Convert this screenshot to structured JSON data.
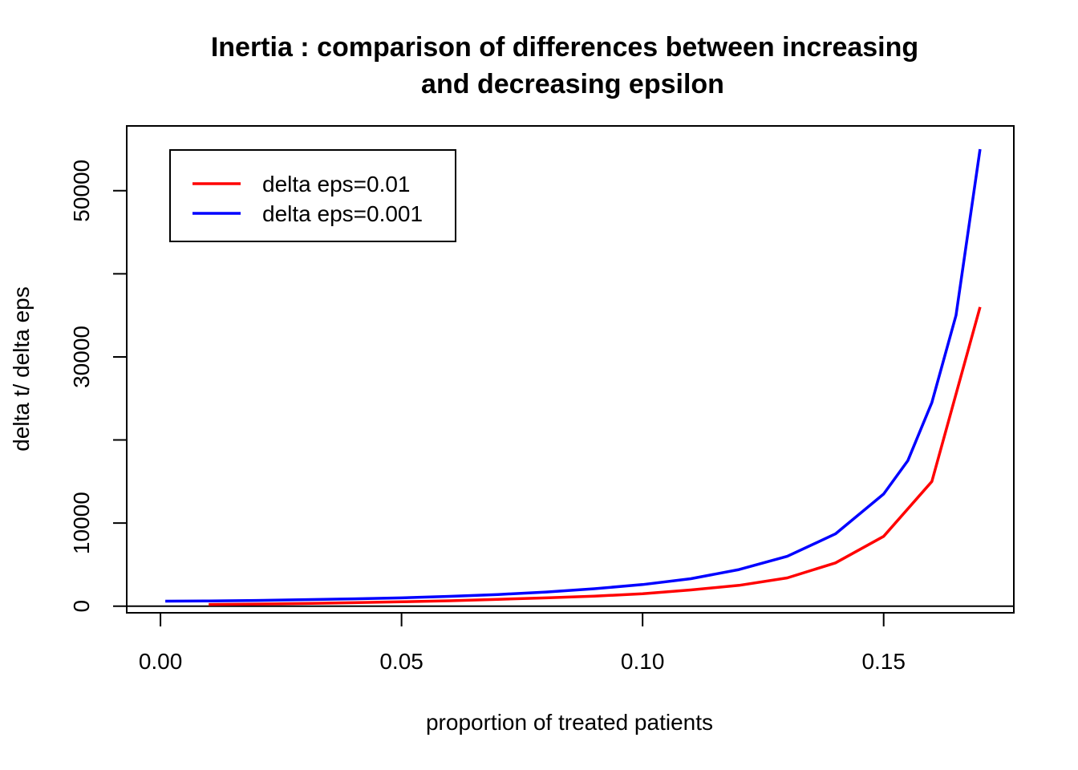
{
  "chart_data": {
    "type": "line",
    "title_lines": [
      "Inertia : comparison of differences between increasing",
      "and decreasing epsilon"
    ],
    "xlabel": "proportion of treated patients",
    "ylabel": "delta t/ delta eps",
    "xlim": [
      -0.007,
      0.177
    ],
    "ylim": [
      -800,
      57800
    ],
    "x_ticks": [
      0.0,
      0.05,
      0.1,
      0.15
    ],
    "x_tick_labels": [
      "0.00",
      "0.05",
      "0.10",
      "0.15"
    ],
    "y_ticks": [
      0,
      10000,
      20000,
      30000,
      40000,
      50000
    ],
    "y_tick_labels": [
      "0",
      "10000",
      "",
      "30000",
      "",
      "50000"
    ],
    "reference_line_y": 0,
    "grid": false,
    "legend_position": "top-left",
    "series": [
      {
        "name": "delta eps=0.01",
        "color": "#ff0000",
        "x": [
          0.01,
          0.02,
          0.03,
          0.04,
          0.05,
          0.06,
          0.07,
          0.08,
          0.09,
          0.1,
          0.11,
          0.12,
          0.13,
          0.14,
          0.15,
          0.16,
          0.17
        ],
        "y": [
          200,
          250,
          320,
          420,
          520,
          650,
          820,
          1000,
          1200,
          1500,
          1950,
          2500,
          3400,
          5200,
          8400,
          15000,
          36000
        ]
      },
      {
        "name": "delta eps=0.001",
        "color": "#0000ff",
        "x": [
          0.001,
          0.01,
          0.02,
          0.03,
          0.04,
          0.05,
          0.06,
          0.07,
          0.08,
          0.09,
          0.1,
          0.11,
          0.12,
          0.13,
          0.14,
          0.15,
          0.155,
          0.16,
          0.165,
          0.17
        ],
        "y": [
          600,
          630,
          690,
          780,
          880,
          1000,
          1180,
          1400,
          1700,
          2100,
          2600,
          3300,
          4400,
          6000,
          8700,
          13500,
          17500,
          24500,
          35000,
          55000
        ]
      }
    ]
  }
}
